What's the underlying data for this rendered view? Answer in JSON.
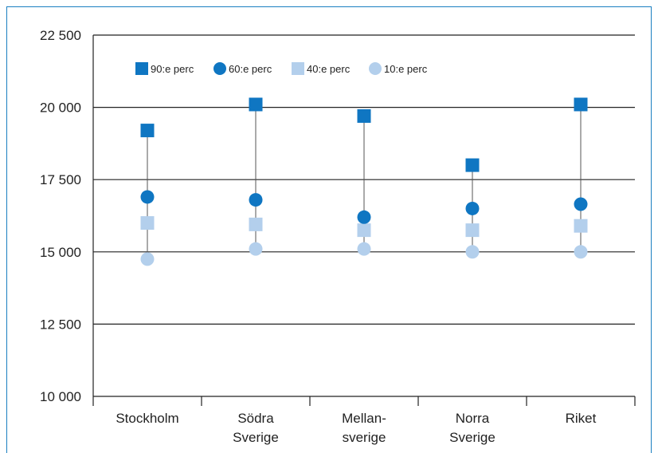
{
  "chart_data": {
    "type": "scatter",
    "title": "",
    "xlabel": "",
    "ylabel": "",
    "ylim": [
      10000,
      22500
    ],
    "yticks": [
      10000,
      12500,
      15000,
      17500,
      20000,
      22500
    ],
    "ytick_labels": [
      "10 000",
      "12 500",
      "15 000",
      "17 500",
      "20 000",
      "22 500"
    ],
    "categories": [
      [
        "Stockholm"
      ],
      [
        "Södra",
        "Sverige"
      ],
      [
        "Mellan-",
        "sverige"
      ],
      [
        "Norra",
        "Sverige"
      ],
      [
        "Riket"
      ]
    ],
    "grid": "horizontal",
    "legend_position": "top-left",
    "series": [
      {
        "name": "90:e perc",
        "marker": "square",
        "color": "#0f76c2",
        "values": [
          19200,
          20100,
          19700,
          18000,
          20100
        ]
      },
      {
        "name": "60:e perc",
        "marker": "circle",
        "color": "#0f76c2",
        "values": [
          16900,
          16800,
          16200,
          16500,
          16650
        ]
      },
      {
        "name": "40:e perc",
        "marker": "square",
        "color": "#b3cfec",
        "values": [
          16000,
          15950,
          15750,
          15750,
          15900
        ]
      },
      {
        "name": "10:e perc",
        "marker": "circle",
        "color": "#b3cfec",
        "values": [
          14750,
          15100,
          15100,
          15000,
          15000
        ]
      }
    ]
  },
  "colors": {
    "frame": "#1a7fc1",
    "axis": "#222222"
  }
}
